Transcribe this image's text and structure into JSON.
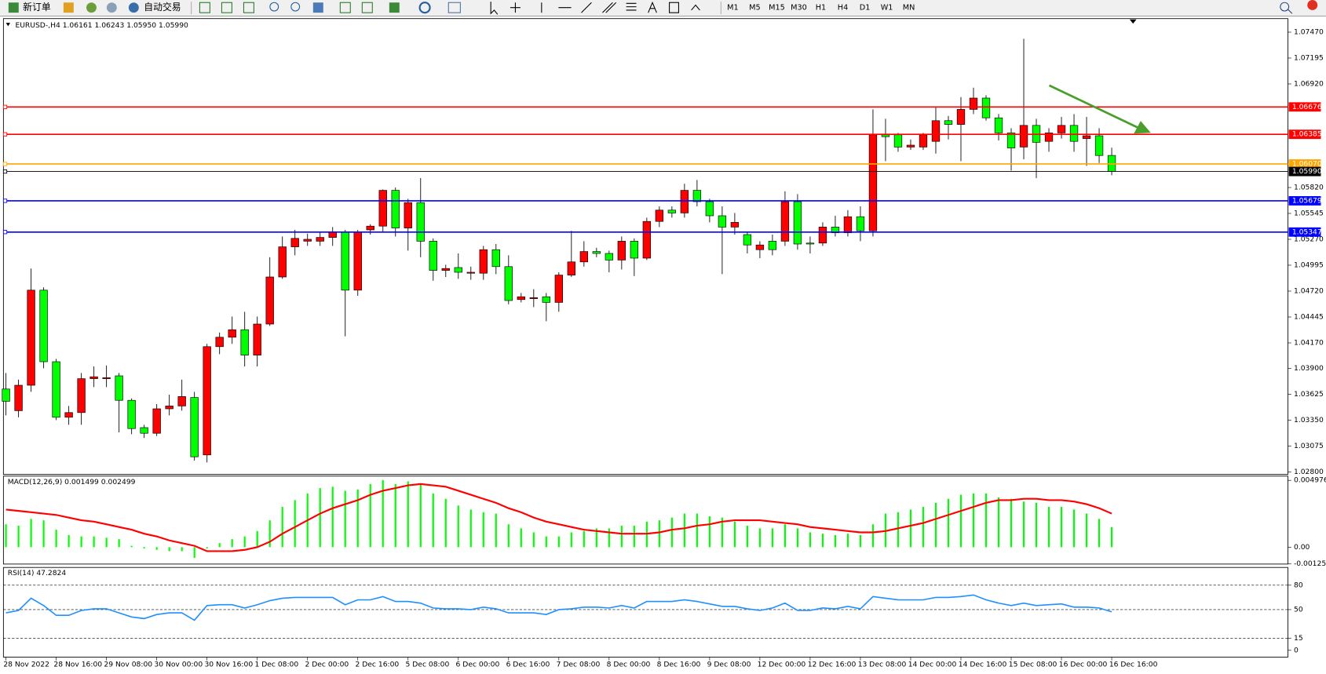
{
  "toolbar": {
    "new_order": "新订单",
    "auto_trading": "自动交易",
    "timeframes": [
      "M1",
      "M5",
      "M15",
      "M30",
      "H1",
      "H4",
      "D1",
      "W1",
      "MN"
    ]
  },
  "chart_data": {
    "type": "candlestick",
    "title": "EURUSD-,H4  1.06161 1.06243 1.05950 1.05990",
    "up_color": "#ff0000",
    "down_color": "#00ff00",
    "categories": [
      "28 Nov 2022",
      null,
      null,
      null,
      "28 Nov 16:00",
      null,
      null,
      null,
      "29 Nov 08:00",
      null,
      null,
      null,
      "30 Nov 00:00",
      null,
      null,
      null,
      "30 Nov 16:00",
      null,
      null,
      null,
      "1 Dec 08:00",
      null,
      null,
      null,
      "2 Dec 00:00",
      null,
      null,
      null,
      "2 Dec 16:00",
      null,
      null,
      null,
      "5 Dec 08:00",
      null,
      null,
      null,
      "6 Dec 00:00",
      null,
      null,
      null,
      "6 Dec 16:00",
      null,
      null,
      null,
      "7 Dec 08:00",
      null,
      null,
      null,
      "8 Dec 00:00",
      null,
      null,
      null,
      "8 Dec 16:00",
      null,
      null,
      null,
      "9 Dec 08:00",
      null,
      null,
      null,
      "12 Dec 00:00",
      null,
      null,
      null,
      "12 Dec 16:00",
      null,
      null,
      null,
      "13 Dec 08:00",
      null,
      null,
      null,
      "14 Dec 00:00",
      null,
      null,
      null,
      "14 Dec 16:00",
      null,
      null,
      null,
      "15 Dec 08:00",
      null,
      null,
      null,
      "16 Dec 00:00",
      null,
      null,
      null,
      "16 Dec 16:00"
    ],
    "ohlc": [
      [
        1.0368,
        1.0385,
        1.034,
        1.0355
      ],
      [
        1.0345,
        1.0378,
        1.0338,
        1.0372
      ],
      [
        1.0372,
        1.0496,
        1.0365,
        1.0473
      ],
      [
        1.0473,
        1.0476,
        1.039,
        1.0397
      ],
      [
        1.0397,
        1.04,
        1.0335,
        1.0338
      ],
      [
        1.0338,
        1.035,
        1.033,
        1.0343
      ],
      [
        1.0343,
        1.0385,
        1.033,
        1.0379
      ],
      [
        1.0379,
        1.0392,
        1.037,
        1.0381
      ],
      [
        1.0379,
        1.0393,
        1.037,
        1.038
      ],
      [
        1.0382,
        1.0385,
        1.0322,
        1.0356
      ],
      [
        1.0356,
        1.0358,
        1.032,
        1.0326
      ],
      [
        1.0327,
        1.033,
        1.0316,
        1.0321
      ],
      [
        1.0321,
        1.0352,
        1.0318,
        1.0347
      ],
      [
        1.0347,
        1.0362,
        1.034,
        1.035
      ],
      [
        1.035,
        1.0378,
        1.0345,
        1.036
      ],
      [
        1.0359,
        1.0365,
        1.0292,
        1.0296
      ],
      [
        1.0298,
        1.0416,
        1.029,
        1.0413
      ],
      [
        1.0413,
        1.0428,
        1.0405,
        1.0423
      ],
      [
        1.0423,
        1.0445,
        1.0416,
        1.0431
      ],
      [
        1.0431,
        1.045,
        1.0392,
        1.0404
      ],
      [
        1.0404,
        1.0445,
        1.0392,
        1.0437
      ],
      [
        1.0437,
        1.0508,
        1.0435,
        1.0487
      ],
      [
        1.0487,
        1.053,
        1.0485,
        1.0519
      ],
      [
        1.0519,
        1.0537,
        1.051,
        1.0528
      ],
      [
        1.0525,
        1.0533,
        1.052,
        1.0527
      ],
      [
        1.0525,
        1.0535,
        1.052,
        1.0529
      ],
      [
        1.0529,
        1.054,
        1.052,
        1.0535
      ],
      [
        1.0535,
        1.0537,
        1.0424,
        1.0473
      ],
      [
        1.0473,
        1.0537,
        1.0467,
        1.0535
      ],
      [
        1.0537,
        1.0543,
        1.0532,
        1.0541
      ],
      [
        1.0541,
        1.058,
        1.0535,
        1.0579
      ],
      [
        1.0579,
        1.0582,
        1.053,
        1.0539
      ],
      [
        1.0539,
        1.057,
        1.0515,
        1.0566
      ],
      [
        1.0566,
        1.0592,
        1.0508,
        1.0525
      ],
      [
        1.0525,
        1.0528,
        1.0483,
        1.0494
      ],
      [
        1.0494,
        1.05,
        1.0487,
        1.0496
      ],
      [
        1.0497,
        1.0512,
        1.0485,
        1.0492
      ],
      [
        1.0491,
        1.0498,
        1.0484,
        1.0492
      ],
      [
        1.0491,
        1.052,
        1.0484,
        1.0516
      ],
      [
        1.0516,
        1.0522,
        1.049,
        1.0498
      ],
      [
        1.0498,
        1.051,
        1.0458,
        1.0462
      ],
      [
        1.0463,
        1.047,
        1.046,
        1.0466
      ],
      [
        1.0464,
        1.0474,
        1.0455,
        1.0465
      ],
      [
        1.0466,
        1.047,
        1.044,
        1.046
      ],
      [
        1.046,
        1.0492,
        1.045,
        1.0489
      ],
      [
        1.0489,
        1.0536,
        1.0487,
        1.0503
      ],
      [
        1.0503,
        1.0525,
        1.0498,
        1.0514
      ],
      [
        1.0514,
        1.0518,
        1.0508,
        1.0512
      ],
      [
        1.0512,
        1.0515,
        1.0492,
        1.0505
      ],
      [
        1.0505,
        1.053,
        1.0495,
        1.0525
      ],
      [
        1.0525,
        1.0528,
        1.0488,
        1.0507
      ],
      [
        1.0507,
        1.055,
        1.0505,
        1.0546
      ],
      [
        1.0546,
        1.0562,
        1.054,
        1.0558
      ],
      [
        1.0558,
        1.0562,
        1.055,
        1.0555
      ],
      [
        1.0555,
        1.0586,
        1.055,
        1.0579
      ],
      [
        1.0579,
        1.059,
        1.0562,
        1.0567
      ],
      [
        1.0567,
        1.057,
        1.0545,
        1.0552
      ],
      [
        1.0552,
        1.0562,
        1.049,
        1.054
      ],
      [
        1.054,
        1.0555,
        1.0532,
        1.0545
      ],
      [
        1.0532,
        1.0535,
        1.0512,
        1.0521
      ],
      [
        1.0516,
        1.0525,
        1.0507,
        1.0521
      ],
      [
        1.0525,
        1.0532,
        1.051,
        1.0516
      ],
      [
        1.0525,
        1.0578,
        1.052,
        1.0567
      ],
      [
        1.0567,
        1.0575,
        1.0516,
        1.0522
      ],
      [
        1.0523,
        1.053,
        1.0512,
        1.0522
      ],
      [
        1.0523,
        1.0545,
        1.052,
        1.054
      ],
      [
        1.054,
        1.0552,
        1.053,
        1.0534
      ],
      [
        1.0534,
        1.0558,
        1.053,
        1.0551
      ],
      [
        1.0551,
        1.0562,
        1.0525,
        1.0536
      ],
      [
        1.0536,
        1.0665,
        1.053,
        1.0638
      ],
      [
        1.0638,
        1.0655,
        1.061,
        1.0636
      ],
      [
        1.0638,
        1.064,
        1.062,
        1.0625
      ],
      [
        1.0625,
        1.0633,
        1.0622,
        1.0627
      ],
      [
        1.0625,
        1.064,
        1.0622,
        1.0638
      ],
      [
        1.0631,
        1.0668,
        1.0618,
        1.0653
      ],
      [
        1.0653,
        1.0658,
        1.0633,
        1.0649
      ],
      [
        1.0649,
        1.0678,
        1.061,
        1.0665
      ],
      [
        1.0665,
        1.0688,
        1.066,
        1.0677
      ],
      [
        1.0677,
        1.068,
        1.0653,
        1.0656
      ],
      [
        1.0656,
        1.066,
        1.0632,
        1.064
      ],
      [
        1.064,
        1.0645,
        1.06,
        1.0624
      ],
      [
        1.0625,
        1.074,
        1.0612,
        1.0648
      ],
      [
        1.0648,
        1.0655,
        1.0592,
        1.063
      ],
      [
        1.0631,
        1.0645,
        1.062,
        1.064
      ],
      [
        1.064,
        1.0657,
        1.0634,
        1.0648
      ],
      [
        1.0648,
        1.066,
        1.062,
        1.0631
      ],
      [
        1.0634,
        1.0657,
        1.0605,
        1.0637
      ],
      [
        1.0637,
        1.0645,
        1.0608,
        1.0616
      ],
      [
        1.06161,
        1.06243,
        1.0595,
        1.0599
      ]
    ],
    "ylim": [
      1.02773,
      1.07614
    ],
    "yticks": [
      {
        "value": 1.0747,
        "label": "1.07470"
      },
      1.07195,
      {
        "value": 1.0692,
        "label": "1.06920"
      },
      {
        "value": 1.0582,
        "label": "1.05820"
      },
      1.05545,
      {
        "value": 1.0527,
        "label": "1.05270"
      },
      1.04995,
      {
        "value": 1.0472,
        "label": "1.04720"
      },
      1.04445,
      {
        "value": 1.0417,
        "label": "1.04170"
      },
      {
        "value": 1.039,
        "label": "1.03900"
      },
      1.03625,
      {
        "value": 1.0335,
        "label": "1.03350"
      },
      1.03075,
      {
        "value": 1.028,
        "label": "1.02800"
      }
    ],
    "levels": [
      {
        "value": 1.06676,
        "color": "#ff0000"
      },
      {
        "value": 1.06385,
        "color": "#ff0000"
      },
      {
        "value": 1.0607,
        "label": "1.06070",
        "color": "#ffa500"
      },
      {
        "value": 1.0599,
        "label": "1.05990",
        "color": "#000000"
      },
      {
        "value": 1.05679,
        "color": "#0000ff"
      },
      {
        "value": 1.05347,
        "color": "#0000ff"
      }
    ],
    "macd": {
      "label": "MACD(12,26,9) 0.001499 0.002499",
      "hist_color": "#00ff00",
      "signal_color": "#ff0000",
      "ylim": [
        -0.00126,
        0.00529
      ],
      "yticks": [
        0.004976,
        {
          "value": 0,
          "label": "0.00"
        },
        -0.001251
      ],
      "histogram": [
        0.0017,
        0.0016,
        0.0021,
        0.002,
        0.0013,
        0.0009,
        0.0008,
        0.0008,
        0.0007,
        0.0006,
        0.0001,
        -0.0001,
        -0.0002,
        -0.0003,
        -0.0003,
        -0.0008,
        -0.0001,
        0.0003,
        0.0006,
        0.0008,
        0.0012,
        0.002,
        0.003,
        0.0035,
        0.004,
        0.0044,
        0.0045,
        0.0042,
        0.0043,
        0.0047,
        0.005,
        0.0047,
        0.0049,
        0.0047,
        0.004,
        0.0036,
        0.0031,
        0.0028,
        0.0026,
        0.0025,
        0.0017,
        0.0014,
        0.0011,
        0.0008,
        0.0008,
        0.0011,
        0.0012,
        0.0014,
        0.0014,
        0.0016,
        0.0016,
        0.0019,
        0.002,
        0.0022,
        0.0025,
        0.0025,
        0.0023,
        0.0022,
        0.0019,
        0.0016,
        0.0014,
        0.0014,
        0.0017,
        0.0014,
        0.0011,
        0.001,
        0.0009,
        0.001,
        0.0009,
        0.0017,
        0.0025,
        0.0026,
        0.0028,
        0.003,
        0.0033,
        0.0036,
        0.0039,
        0.004,
        0.004,
        0.0037,
        0.0036,
        0.0034,
        0.0033,
        0.003,
        0.003,
        0.0028,
        0.0025,
        0.0021,
        0.001499
      ],
      "signal": [
        0.0028,
        0.0027,
        0.0026,
        0.0025,
        0.0024,
        0.0022,
        0.002,
        0.0019,
        0.0017,
        0.0015,
        0.0013,
        0.001,
        0.0008,
        0.0005,
        0.0003,
        0.0001,
        -0.0003,
        -0.0003,
        -0.0003,
        -0.0002,
        0,
        0.0004,
        0.001,
        0.0015,
        0.002,
        0.0025,
        0.0029,
        0.0032,
        0.0035,
        0.0039,
        0.0042,
        0.0044,
        0.0046,
        0.0047,
        0.0046,
        0.0045,
        0.0042,
        0.0039,
        0.0036,
        0.0033,
        0.0029,
        0.0026,
        0.0022,
        0.0019,
        0.0017,
        0.0015,
        0.0013,
        0.0012,
        0.0011,
        0.001,
        0.001,
        0.001,
        0.0011,
        0.0013,
        0.0014,
        0.0016,
        0.0017,
        0.0019,
        0.002,
        0.002,
        0.002,
        0.0019,
        0.0018,
        0.0017,
        0.0015,
        0.0014,
        0.0013,
        0.0012,
        0.0011,
        0.0011,
        0.0012,
        0.0014,
        0.0016,
        0.0018,
        0.0021,
        0.0024,
        0.0027,
        0.003,
        0.0033,
        0.0035,
        0.0035,
        0.0036,
        0.0036,
        0.0035,
        0.0035,
        0.0034,
        0.0032,
        0.0029,
        0.002499
      ]
    },
    "rsi": {
      "label": "RSI(14) 47.2824",
      "color": "#1e90ff",
      "ylim": [
        -8.3,
        101.8
      ],
      "yticks": [
        80,
        50,
        15,
        0
      ],
      "values": [
        46,
        49,
        64,
        55,
        43,
        43,
        49,
        51,
        51,
        46,
        41,
        39,
        44,
        46,
        46,
        37,
        55,
        56,
        56,
        52,
        56,
        61,
        64,
        65,
        65,
        65,
        65,
        56,
        62,
        62,
        66,
        60,
        60,
        58,
        52,
        51,
        51,
        50,
        53,
        51,
        46,
        46,
        46,
        44,
        50,
        51,
        53,
        53,
        52,
        55,
        52,
        60,
        60,
        60,
        62,
        60,
        57,
        54,
        54,
        51,
        49,
        52,
        58,
        49,
        49,
        52,
        51,
        54,
        51,
        66,
        64,
        62,
        62,
        62,
        65,
        65,
        66,
        68,
        62,
        58,
        55,
        58,
        55,
        56,
        57,
        53,
        53,
        52,
        47.2824
      ]
    }
  }
}
